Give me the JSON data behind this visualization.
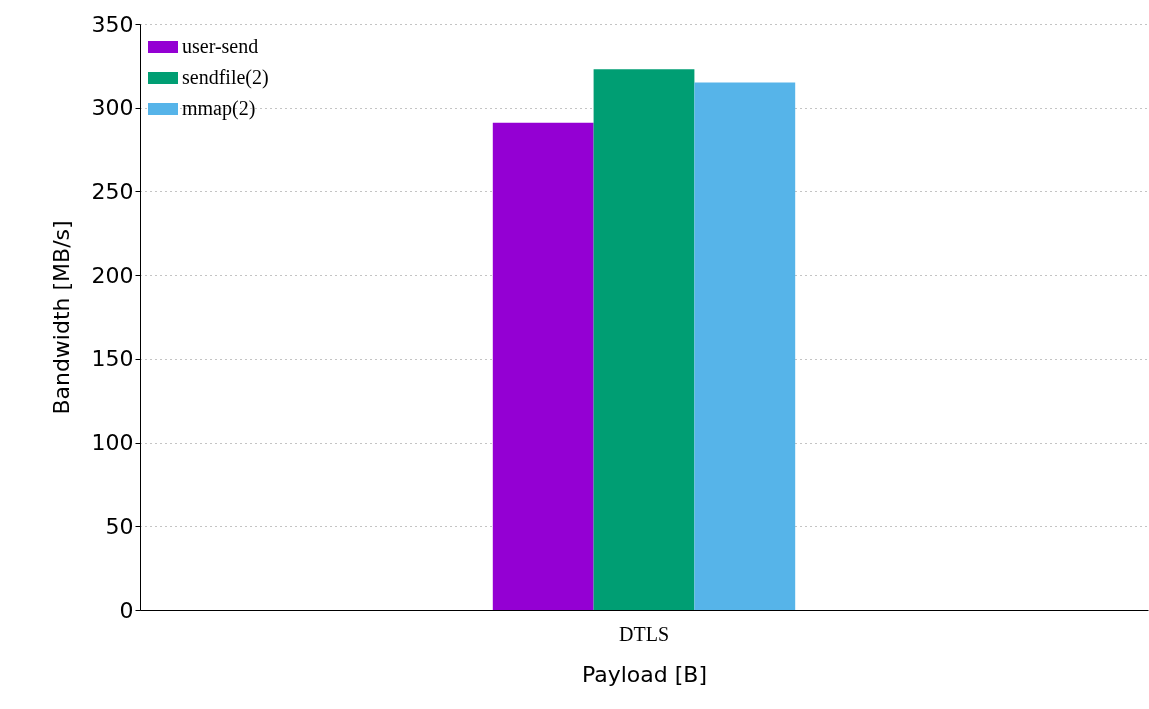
{
  "chart_data": {
    "type": "bar",
    "xlabel": "Payload [B]",
    "ylabel": "Bandwidth [MB/s]",
    "categories": [
      "DTLS"
    ],
    "series": [
      {
        "name": "user-send",
        "color": "#9400d3",
        "values": [
          291
        ]
      },
      {
        "name": "sendfile(2)",
        "color": "#009e73",
        "values": [
          323
        ]
      },
      {
        "name": "mmap(2)",
        "color": "#56b4e9",
        "values": [
          315
        ]
      }
    ],
    "ylim": [
      0,
      350
    ],
    "yticks": [
      0,
      50,
      100,
      150,
      200,
      250,
      300,
      350
    ],
    "grid": "y",
    "legend": "top left"
  }
}
